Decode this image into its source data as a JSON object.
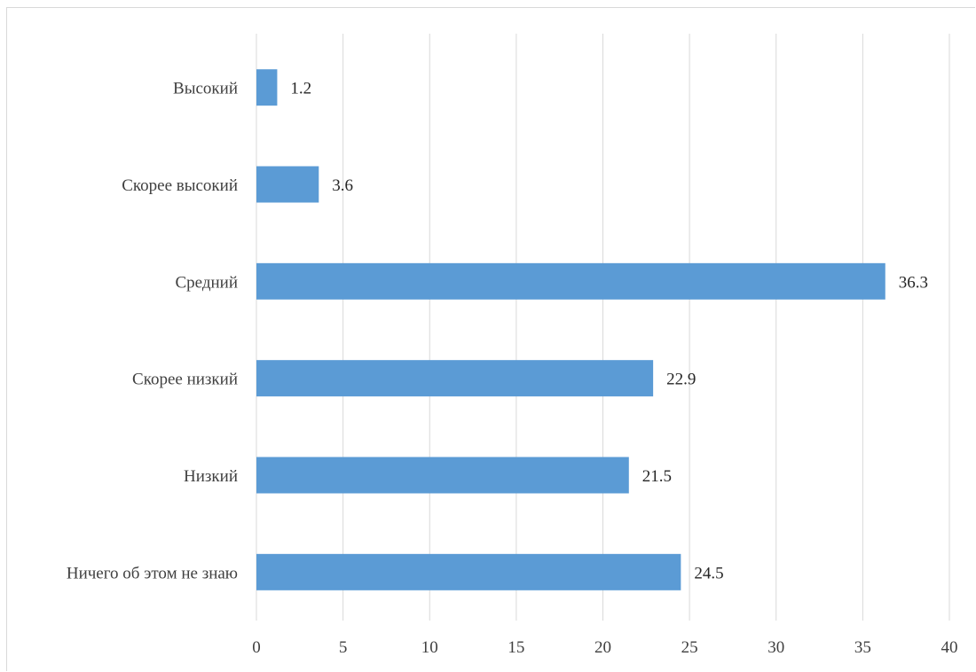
{
  "chart_data": {
    "type": "bar",
    "orientation": "horizontal",
    "categories": [
      "Высокий",
      "Скорее высокий",
      "Средний",
      "Скорее низкий",
      "Низкий",
      "Ничего об этом не знаю"
    ],
    "values": [
      1.2,
      3.6,
      36.3,
      22.9,
      21.5,
      24.5
    ],
    "data_labels": [
      "1.2",
      "3.6",
      "36.3",
      "22.9",
      "21.5",
      "24.5"
    ],
    "xlim": [
      0,
      40
    ],
    "xticks": [
      0,
      5,
      10,
      15,
      20,
      25,
      30,
      35,
      40
    ],
    "title": "",
    "xlabel": "",
    "ylabel": "",
    "grid": "vertical",
    "legend": "none",
    "colors": {
      "bar": "#5b9bd5",
      "grid": "#d9d9d9",
      "text": "#404040"
    }
  }
}
